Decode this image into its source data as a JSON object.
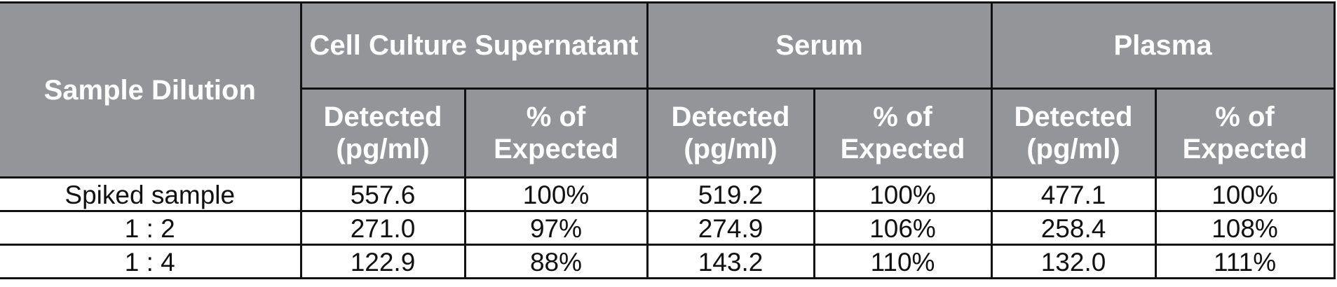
{
  "table": {
    "header": {
      "corner": "Sample Dilution",
      "groups": [
        "Cell Culture Supernatant",
        "Serum",
        "Plasma"
      ],
      "subheaders": [
        "Detected (pg/ml)",
        "% of Expected",
        "Detected (pg/ml)",
        "% of Expected",
        "Detected (pg/ml)",
        "% of Expected"
      ]
    },
    "rows": [
      [
        "Spiked sample",
        "557.6",
        "100%",
        "519.2",
        "100%",
        "477.1",
        "100%"
      ],
      [
        "1 : 2",
        "271.0",
        "97%",
        "274.9",
        "106%",
        "258.4",
        "108%"
      ],
      [
        "1 : 4",
        "122.9",
        "88%",
        "143.2",
        "110%",
        "132.0",
        "111%"
      ]
    ]
  }
}
